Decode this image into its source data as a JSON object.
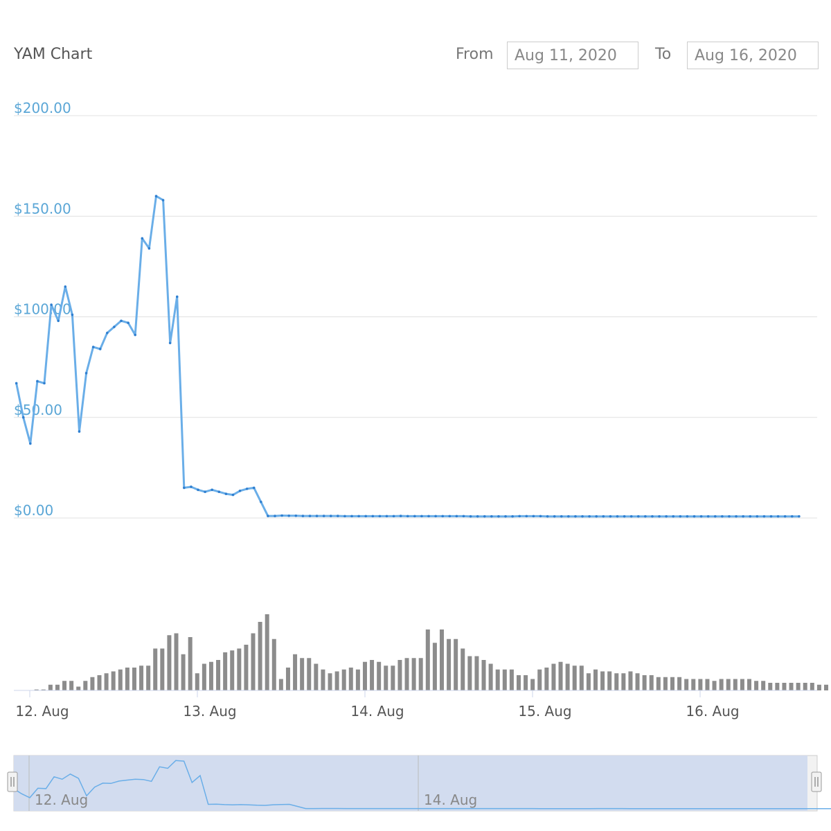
{
  "header": {
    "title": "YAM Chart",
    "from_label": "From",
    "from_value": "Aug 11, 2020",
    "to_label": "To",
    "to_value": "Aug 16, 2020"
  },
  "colors": {
    "price_line": "#6aaee8",
    "volume_bar": "#8c8c8c",
    "grid": "#e0e0e0",
    "y_label": "#5aa6d6",
    "navigator_fill": "#d2dcef",
    "navigator_line": "#6aaee8"
  },
  "chart_data": {
    "type": "line",
    "title": "YAM Chart",
    "x_unit": "hours since first shown tick",
    "x_ticks": [
      {
        "label": "12. Aug",
        "day": 0
      },
      {
        "label": "13. Aug",
        "day": 1
      },
      {
        "label": "14. Aug",
        "day": 2
      },
      {
        "label": "15. Aug",
        "day": 3
      },
      {
        "label": "16. Aug",
        "day": 4
      }
    ],
    "y_ticks": [
      "$0.00",
      "$50.00",
      "$100.00",
      "$150.00",
      "$200.00"
    ],
    "ylim": [
      0,
      200
    ],
    "grid": true,
    "price_series": {
      "name": "Price",
      "start_day": -0.08,
      "step_days": 0.0417,
      "values": [
        67,
        50,
        37,
        68,
        67,
        106,
        98,
        115,
        101,
        43,
        72,
        85,
        84,
        92,
        95,
        98,
        97,
        91,
        139,
        134,
        160,
        158,
        87,
        110,
        15,
        15.5,
        14,
        13,
        14,
        13,
        12,
        11.5,
        13.5,
        14.5,
        15,
        8,
        1,
        1,
        1.2,
        1.1,
        1.1,
        1,
        1,
        1,
        1,
        1,
        1,
        0.9,
        0.9,
        0.9,
        0.9,
        0.9,
        0.9,
        0.9,
        0.9,
        1,
        0.9,
        0.9,
        0.9,
        0.9,
        0.9,
        0.9,
        0.9,
        0.9,
        0.9,
        0.8,
        0.8,
        0.8,
        0.8,
        0.8,
        0.8,
        0.8,
        0.9,
        0.9,
        0.9,
        0.9,
        0.8,
        0.8,
        0.8,
        0.8,
        0.8,
        0.8,
        0.8,
        0.8,
        0.8,
        0.8,
        0.8,
        0.8,
        0.8,
        0.8,
        0.8,
        0.8,
        0.8,
        0.8,
        0.8,
        0.8,
        0.8,
        0.8,
        0.8,
        0.8,
        0.8,
        0.8,
        0.8,
        0.8,
        0.8,
        0.8,
        0.8,
        0.8,
        0.8,
        0.8,
        0.8,
        0.8,
        0.8
      ]
    },
    "volume_series": {
      "name": "Volume",
      "start_day": 0.04,
      "step_days": 0.0417,
      "values": [
        0.5,
        0.5,
        3,
        3,
        5,
        5,
        2,
        5,
        7,
        8,
        9,
        10,
        11,
        12,
        12,
        13,
        13,
        22,
        22,
        29,
        30,
        19,
        28,
        9,
        14,
        15,
        16,
        20,
        21,
        22,
        24,
        30,
        36,
        40,
        27,
        6,
        12,
        19,
        17,
        17,
        14,
        11,
        9,
        10,
        11,
        12,
        11,
        15,
        16,
        15,
        13,
        13,
        16,
        17,
        17,
        17,
        32,
        25,
        32,
        27,
        27,
        22,
        18,
        18,
        16,
        14,
        11,
        11,
        11,
        8,
        8,
        6,
        11,
        12,
        14,
        15,
        14,
        13,
        13,
        9,
        11,
        10,
        10,
        9,
        9,
        10,
        9,
        8,
        8,
        7,
        7,
        7,
        7,
        6,
        6,
        6,
        6,
        5,
        6,
        6,
        6,
        6,
        6,
        5,
        5,
        4,
        4,
        4,
        4,
        4,
        4,
        4,
        3,
        3,
        3,
        3,
        3,
        3,
        3,
        2,
        2
      ]
    },
    "navigator": {
      "labels": [
        {
          "label": "12. Aug",
          "day": 0
        },
        {
          "label": "14. Aug",
          "day": 2
        }
      ]
    }
  }
}
